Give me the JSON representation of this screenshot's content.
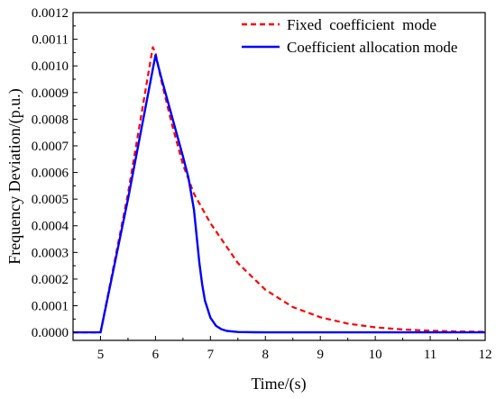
{
  "chart_data": {
    "type": "line",
    "title": "",
    "xlabel": "Time/(s)",
    "ylabel": "Frequency Deviation/(p.u.)",
    "xlim": [
      4.5,
      12
    ],
    "ylim": [
      -3e-05,
      0.0012
    ],
    "xticks": [
      "5",
      "6",
      "7",
      "8",
      "9",
      "10",
      "11",
      "12"
    ],
    "yticks": [
      "0.0000",
      "0.0001",
      "0.0002",
      "0.0003",
      "0.0004",
      "0.0005",
      "0.0006",
      "0.0007",
      "0.0008",
      "0.0009",
      "0.0010",
      "0.0011",
      "0.0012"
    ],
    "grid": false,
    "legend_position": "top-right",
    "series": [
      {
        "name": "Fixed  coefficient  mode",
        "color": "#ff0000",
        "style": "dashed",
        "x": [
          4.5,
          5.0,
          5.5,
          5.95,
          6.0,
          6.1,
          6.3,
          6.5,
          6.7,
          7.0,
          7.5,
          8.0,
          8.5,
          9.0,
          9.5,
          10.0,
          10.5,
          11.0,
          11.5,
          12.0
        ],
        "y": [
          0,
          0,
          0.00052,
          0.00107,
          0.00105,
          0.00095,
          0.00078,
          0.00063,
          0.00052,
          0.00041,
          0.00026,
          0.00016,
          9.5e-05,
          5.7e-05,
          3.3e-05,
          1.9e-05,
          1.1e-05,
          6e-06,
          3.5e-06,
          2e-06
        ]
      },
      {
        "name": "Coefficient allocation mode",
        "color": "#0000ff",
        "style": "solid",
        "x": [
          4.5,
          5.0,
          5.5,
          6.0,
          6.1,
          6.3,
          6.5,
          6.6,
          6.7,
          6.75,
          6.8,
          6.85,
          6.9,
          7.0,
          7.1,
          7.2,
          7.3,
          7.5,
          7.8,
          8.0,
          9.0,
          10.0,
          11.0,
          12.0
        ],
        "y": [
          0,
          0,
          0.0005,
          0.00104,
          0.00096,
          0.00081,
          0.00066,
          0.00058,
          0.00046,
          0.00036,
          0.00026,
          0.00018,
          0.00012,
          5.5e-05,
          2.5e-05,
          1.2e-05,
          5.5e-06,
          1.5e-06,
          3e-07,
          0,
          0,
          0,
          0,
          0
        ]
      }
    ]
  }
}
